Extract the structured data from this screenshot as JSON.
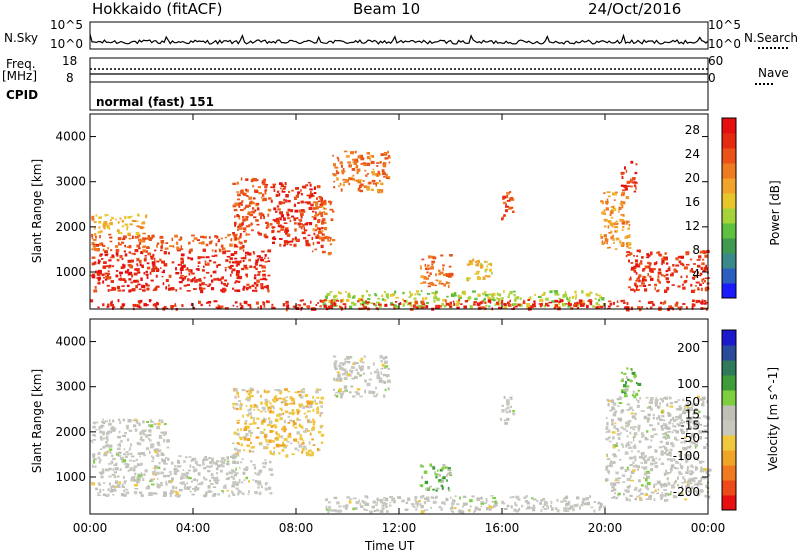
{
  "header": {
    "radar": "Hokkaido (fitACF)",
    "beam": "Beam 10",
    "date": "24/Oct/2016"
  },
  "strips": {
    "nsky_label": "N.Sky",
    "nsearch_label": "N.Search",
    "nsky_ticks": [
      "10^5",
      "10^0"
    ],
    "nsearch_ticks": [
      "10^5",
      "10^0"
    ],
    "freq_label": "Freq.",
    "freq_unit": "[MHz]",
    "freq_ticks": [
      "18",
      "8"
    ],
    "nave_label": "Nave",
    "nave_ticks": [
      "60",
      "0"
    ],
    "cpid_label": "CPID",
    "cpid_value": "normal (fast) 151"
  },
  "x_axis": {
    "label": "Time UT",
    "ticks": [
      "00:00",
      "04:00",
      "08:00",
      "12:00",
      "16:00",
      "20:00",
      "00:00"
    ]
  },
  "colors": {
    "power_scale": [
      "#1a1aff",
      "#2a5fc0",
      "#3a8a8a",
      "#3f9a50",
      "#5fbf3f",
      "#a6d23a",
      "#e6c62a",
      "#f2a32a",
      "#ee7a22",
      "#ea5218",
      "#e62a10",
      "#e60f0f"
    ],
    "velocity_scale": [
      "#e61010",
      "#ec4a18",
      "#f07a20",
      "#f0a428",
      "#f0c840",
      "#c8c8c0",
      "#c0c0b8",
      "#7ecf40",
      "#3f9c3a",
      "#2f7a5a",
      "#2a4a9a",
      "#1a1acc"
    ],
    "ground_scatter": "#c0c0b8"
  },
  "chart_data": [
    {
      "type": "heatmap",
      "title": "",
      "xlabel": "Time UT",
      "ylabel": "Slant Range [km]",
      "x_ticks": [
        "00:00",
        "04:00",
        "08:00",
        "12:00",
        "16:00",
        "20:00",
        "00:00"
      ],
      "y_ticks": [
        1000,
        2000,
        3000,
        4000
      ],
      "xlim_hours": [
        0,
        24
      ],
      "ylim_km": [
        180,
        4500
      ],
      "colorbar": {
        "label": "Power [dB]",
        "ticks": [
          4,
          8,
          12,
          16,
          20,
          24,
          28
        ],
        "range": [
          0,
          30
        ]
      },
      "regions": [
        {
          "name": "main-e-layer",
          "t": [
            0.0,
            6.9
          ],
          "r": [
            600,
            1500
          ],
          "v": 27
        },
        {
          "name": "main-upper",
          "t": [
            0.0,
            6.0
          ],
          "r": [
            1500,
            1850
          ],
          "v": 23
        },
        {
          "name": "early-wisp",
          "t": [
            0.0,
            2.2
          ],
          "r": [
            1850,
            2300
          ],
          "v": 18
        },
        {
          "name": "rising-arc-1",
          "t": [
            5.5,
            7.0
          ],
          "r": [
            1800,
            3100
          ],
          "v": 24
        },
        {
          "name": "rising-arc-2",
          "t": [
            7.0,
            9.0
          ],
          "r": [
            1600,
            3000
          ],
          "v": 26
        },
        {
          "name": "arc-tail",
          "t": [
            8.6,
            9.4
          ],
          "r": [
            1400,
            2600
          ],
          "v": 22
        },
        {
          "name": "fan-10h",
          "t": [
            9.4,
            11.6
          ],
          "r": [
            2800,
            3700
          ],
          "v": 22
        },
        {
          "name": "blob-13h",
          "t": [
            12.8,
            14.0
          ],
          "r": [
            700,
            1400
          ],
          "v": 22
        },
        {
          "name": "blob-15h",
          "t": [
            14.5,
            15.6
          ],
          "r": [
            800,
            1300
          ],
          "v": 17
        },
        {
          "name": "streak-16h",
          "t": [
            15.9,
            16.4
          ],
          "r": [
            2200,
            2800
          ],
          "v": 24
        },
        {
          "name": "low-e-echoes",
          "t": [
            9.0,
            20.0
          ],
          "r": [
            250,
            600
          ],
          "v": 14
        },
        {
          "name": "arc-20h",
          "t": [
            19.8,
            21.0
          ],
          "r": [
            1500,
            2800
          ],
          "v": 20
        },
        {
          "name": "dusk-band",
          "t": [
            20.8,
            24.0
          ],
          "r": [
            600,
            1500
          ],
          "v": 26
        },
        {
          "name": "streak-21h",
          "t": [
            20.6,
            21.2
          ],
          "r": [
            2800,
            3500
          ],
          "v": 26
        },
        {
          "name": "ground-near",
          "t": [
            0.0,
            24.0
          ],
          "r": [
            200,
            400
          ],
          "v": 27
        }
      ]
    },
    {
      "type": "heatmap",
      "title": "",
      "xlabel": "Time UT",
      "ylabel": "Slant Range [km]",
      "x_ticks": [
        "00:00",
        "04:00",
        "08:00",
        "12:00",
        "16:00",
        "20:00",
        "00:00"
      ],
      "y_ticks": [
        1000,
        2000,
        3000,
        4000
      ],
      "xlim_hours": [
        0,
        24
      ],
      "ylim_km": [
        180,
        4500
      ],
      "colorbar": {
        "label": "Velocity [m s^-1]",
        "ticks": [
          -200,
          -100,
          -50,
          -15,
          15,
          50,
          100,
          200
        ],
        "range": [
          -250,
          250
        ]
      },
      "regions": [
        {
          "name": "ground-scatter-main",
          "t": [
            0.0,
            7.0
          ],
          "r": [
            600,
            1500
          ],
          "v": 0
        },
        {
          "name": "early-wisp",
          "t": [
            0.0,
            3.0
          ],
          "r": [
            1500,
            2300
          ],
          "v": 0
        },
        {
          "name": "rising-arc",
          "t": [
            5.5,
            9.0
          ],
          "r": [
            1500,
            3000
          ],
          "v": -60
        },
        {
          "name": "fan-10h",
          "t": [
            9.4,
            11.6
          ],
          "r": [
            2800,
            3700
          ],
          "v": 0
        },
        {
          "name": "mid-scatter",
          "t": [
            9.0,
            20.0
          ],
          "r": [
            250,
            600
          ],
          "v": 0
        },
        {
          "name": "green-13h",
          "t": [
            12.8,
            14.0
          ],
          "r": [
            700,
            1300
          ],
          "v": 60
        },
        {
          "name": "streak-16h",
          "t": [
            15.9,
            16.4
          ],
          "r": [
            2200,
            2800
          ],
          "v": 0
        },
        {
          "name": "dusk-scatter",
          "t": [
            20.0,
            24.0
          ],
          "r": [
            500,
            2800
          ],
          "v": 0
        },
        {
          "name": "dusk-green",
          "t": [
            20.6,
            21.3
          ],
          "r": [
            2800,
            3500
          ],
          "v": 70
        }
      ]
    }
  ]
}
